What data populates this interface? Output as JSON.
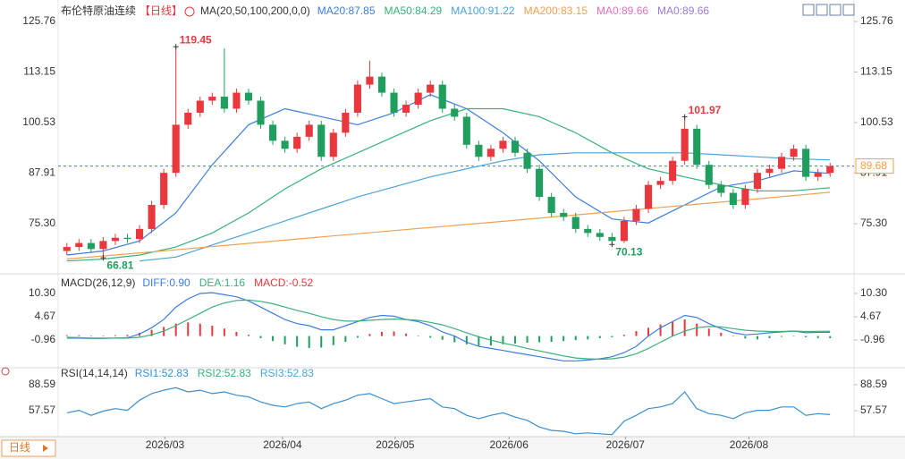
{
  "chart_data": [
    {
      "type": "candlestick",
      "title": "布伦特原油连续",
      "period": "【日线】",
      "indicator": "MA(20,50,100,200,0,0)",
      "open": [
        68.5,
        69.5,
        70.5,
        69,
        71,
        71.8,
        71.5,
        74,
        80,
        88,
        100,
        103,
        106,
        107,
        104,
        108,
        106,
        100,
        96,
        94,
        97,
        100,
        92,
        98,
        103,
        110,
        112,
        108,
        103,
        105,
        108,
        110,
        104,
        102,
        95,
        92,
        94,
        96,
        93,
        89,
        82,
        78,
        77,
        74,
        73,
        72,
        71,
        76,
        79,
        85,
        86,
        91,
        99,
        90,
        85,
        83,
        80,
        84,
        88,
        89,
        92,
        94,
        87,
        88
      ],
      "high": [
        70.5,
        71.5,
        71.5,
        72,
        72.8,
        72.8,
        75,
        81,
        89,
        119.45,
        104,
        107,
        108,
        119,
        109,
        109,
        107,
        101,
        97,
        98,
        101,
        101,
        99,
        104,
        111,
        116,
        113,
        109,
        106,
        109,
        111,
        111,
        105,
        103,
        96,
        95,
        97,
        97,
        94,
        90,
        83,
        79,
        78,
        75,
        74,
        73,
        77,
        80,
        86,
        87,
        92,
        101.97,
        100,
        91,
        86,
        84,
        85,
        89,
        90,
        93,
        95,
        95,
        89,
        90.5
      ],
      "low": [
        67.5,
        68.5,
        68,
        66.81,
        70,
        70.5,
        70.5,
        73,
        79,
        87,
        99,
        102,
        105,
        103,
        103,
        105,
        99,
        95,
        93,
        93,
        96,
        91,
        91,
        97,
        102,
        109,
        107,
        102,
        102,
        104,
        107,
        103,
        101,
        94,
        91,
        91,
        93,
        92,
        88,
        81,
        77,
        76,
        73,
        72,
        71,
        70.13,
        70.5,
        75,
        78,
        84,
        85,
        90,
        89,
        84,
        82,
        79,
        79,
        83,
        87,
        88,
        91,
        86,
        86,
        87
      ],
      "close": [
        69.5,
        70.5,
        69,
        71,
        71.8,
        71.5,
        74,
        80,
        88,
        100,
        103,
        106,
        107,
        104,
        108,
        106,
        100,
        96,
        94,
        97,
        100,
        92,
        98,
        103,
        110,
        112,
        108,
        103,
        105,
        108,
        110,
        104,
        102,
        95,
        92,
        94,
        96,
        93,
        89,
        82,
        78,
        77,
        74,
        73,
        72,
        71,
        76,
        79,
        85,
        86,
        91,
        99,
        90,
        85,
        83,
        80,
        84,
        88,
        89,
        92,
        94,
        87,
        88,
        89.68
      ],
      "up_color": "#e8383d",
      "down_color": "#1f9e5e",
      "xlim": [
        -0.5,
        63.5
      ],
      "xticks": [
        {
          "value": 8.1,
          "label": "2026/03"
        },
        {
          "value": 17.8,
          "label": "2026/04"
        },
        {
          "value": 27.1,
          "label": "2026/05"
        },
        {
          "value": 36.5,
          "label": "2026/06"
        },
        {
          "value": 46.1,
          "label": "2026/07"
        },
        {
          "value": 56.3,
          "label": "2026/08"
        }
      ],
      "ylim": [
        63.04,
        129.33
      ],
      "yticks": [
        125.76,
        113.15,
        100.53,
        87.91,
        {
          "value": 75.3,
          "label": "75.30"
        }
      ],
      "series": [
        {
          "name": "MA20:87.85",
          "color": "#3b7ddd",
          "x": [
            0,
            3,
            6,
            9,
            12,
            15,
            18,
            21,
            24,
            27,
            30,
            33,
            36,
            39,
            42,
            45,
            48,
            51,
            54,
            57,
            60,
            63
          ],
          "values": [
            67.5,
            68.5,
            71,
            78,
            90,
            100,
            104,
            102,
            100,
            103,
            107.5,
            104,
            98,
            91,
            82,
            76.5,
            75.5,
            80,
            84.5,
            86,
            88.5,
            87.85
          ]
        },
        {
          "name": "MA50:84.29",
          "color": "#3ab07a",
          "x": [
            0,
            3,
            6,
            9,
            12,
            15,
            18,
            21,
            24,
            27,
            30,
            33,
            36,
            39,
            42,
            45,
            48,
            51,
            54,
            57,
            60,
            63
          ],
          "values": [
            66,
            66.5,
            67.5,
            69.5,
            73,
            78,
            84,
            89,
            93,
            97,
            101,
            104,
            104,
            102,
            98,
            93,
            89,
            87,
            85,
            83.5,
            83.5,
            84.29
          ]
        },
        {
          "name": "MA100:91.22",
          "color": "#4aa3d8",
          "x": [
            6,
            9,
            12,
            15,
            18,
            21,
            24,
            27,
            30,
            33,
            36,
            39,
            42,
            45,
            48,
            51,
            54,
            57,
            60,
            63
          ],
          "values": [
            66,
            67,
            70,
            73,
            76,
            79,
            82,
            84.5,
            87,
            89,
            91,
            92.5,
            93,
            93,
            93,
            93,
            92.5,
            92,
            91.5,
            91.22
          ]
        },
        {
          "name": "MA200:83.15",
          "color": "#f0a050",
          "x": [
            0,
            9,
            18,
            27,
            36,
            45,
            54,
            63
          ],
          "values": [
            66.5,
            68.8,
            71.2,
            73.6,
            75.9,
            78.3,
            80.7,
            83.15
          ]
        }
      ],
      "extra_legend": [
        {
          "name": "MA0:89.66",
          "color": "#e070c0"
        },
        {
          "name": "MA0:89.66",
          "color": "#9a7ad8"
        }
      ],
      "last_price": 89.68,
      "last_price_color": "#f0a040",
      "line_color": "#3b7ddd"
    },
    {
      "type": "macd",
      "title": "MACD(26,12,9)",
      "ylim": [
        -7.45,
        12.46
      ],
      "yticks": [
        {
          "value": 10.3,
          "label": "10.30"
        },
        4.67,
        -0.96
      ],
      "histogram": {
        "name": "MACD:-0.52",
        "up_color": "#e8383d",
        "down_color": "#1f9e5e",
        "values": [
          0.2,
          0.2,
          0.1,
          0.1,
          0.2,
          0.3,
          0.8,
          1.5,
          2.2,
          3.0,
          3.3,
          3.0,
          2.5,
          1.8,
          1.0,
          0.3,
          -0.5,
          -1.2,
          -2.0,
          -2.6,
          -2.9,
          -2.8,
          -2.2,
          -1.4,
          -0.4,
          0.5,
          1.0,
          1.1,
          0.6,
          0.1,
          -0.4,
          -0.9,
          -1.5,
          -2.0,
          -2.4,
          -2.3,
          -2.0,
          -1.8,
          -1.6,
          -1.5,
          -1.4,
          -1.2,
          -1.0,
          -0.8,
          -0.5,
          -0.3,
          0.3,
          1.2,
          2.0,
          2.8,
          3.5,
          4.0,
          3.0,
          1.8,
          0.8,
          0.1,
          -0.6,
          -0.8,
          -0.5,
          -0.2,
          0.1,
          -0.3,
          -0.5,
          -0.52
        ]
      },
      "series": [
        {
          "name": "DIFF:0.90",
          "color": "#3b7ddd",
          "values": [
            -0.5,
            -0.5,
            -0.6,
            -0.6,
            -0.5,
            -0.4,
            0.5,
            2,
            4,
            7,
            9,
            10.3,
            10.5,
            10,
            9.5,
            8.5,
            7,
            5.5,
            4,
            3,
            2.5,
            1.5,
            1.5,
            2.5,
            3.5,
            4.5,
            5,
            4.8,
            4,
            3.5,
            2.5,
            1,
            0,
            -1.5,
            -2.5,
            -3,
            -3.5,
            -4,
            -4.5,
            -5,
            -5.5,
            -6,
            -6,
            -5.8,
            -5.5,
            -5,
            -4,
            -2.5,
            0,
            2,
            3.5,
            5,
            4.5,
            3,
            1.8,
            0.8,
            0.3,
            0.5,
            0.8,
            1,
            1.2,
            0.8,
            0.9,
            0.9
          ]
        },
        {
          "name": "DEA:1.16",
          "color": "#3ab07a",
          "values": [
            -0.3,
            -0.4,
            -0.5,
            -0.5,
            -0.5,
            -0.5,
            -0.3,
            0.3,
            1.2,
            2.5,
            4,
            5.5,
            7,
            8,
            8.6,
            8.7,
            8.4,
            7.8,
            7,
            6.2,
            5.5,
            4.7,
            4,
            3.6,
            3.6,
            3.8,
            4,
            4.1,
            4,
            3.8,
            3.3,
            2.7,
            1.8,
            0.8,
            -0.2,
            -1,
            -1.7,
            -2.3,
            -3,
            -3.6,
            -4.2,
            -4.8,
            -5.3,
            -5.5,
            -5.6,
            -5.5,
            -5.1,
            -4.3,
            -3,
            -1.5,
            0,
            1.2,
            2,
            2.3,
            2.2,
            1.8,
            1.4,
            1.2,
            1.1,
            1.1,
            1.2,
            1.1,
            1.15,
            1.16
          ]
        }
      ]
    },
    {
      "type": "line",
      "title": "RSI(14,14,14)",
      "ylim": [
        27.6,
        107.8
      ],
      "yticks": [
        88.59,
        57.57
      ],
      "series": [
        {
          "name": "RSI1:52.83",
          "color": "#3b8fd0",
          "values": [
            55,
            58,
            52,
            57,
            60,
            58,
            70,
            78,
            82,
            85,
            80,
            82,
            78,
            80,
            76,
            74,
            68,
            64,
            62,
            66,
            68,
            60,
            66,
            70,
            76,
            78,
            72,
            66,
            68,
            70,
            72,
            62,
            60,
            52,
            48,
            52,
            55,
            50,
            46,
            38,
            34,
            33,
            30,
            31,
            30,
            29,
            45,
            52,
            60,
            62,
            66,
            80,
            60,
            54,
            52,
            48,
            55,
            58,
            58,
            62,
            62,
            52,
            54,
            52.83
          ]
        }
      ],
      "extra_legend": [
        {
          "name": "RSI2:52.83",
          "color": "#3ab07a"
        },
        {
          "name": "RSI3:52.83",
          "color": "#4aa3d8"
        }
      ]
    }
  ],
  "footer_period": "日线"
}
